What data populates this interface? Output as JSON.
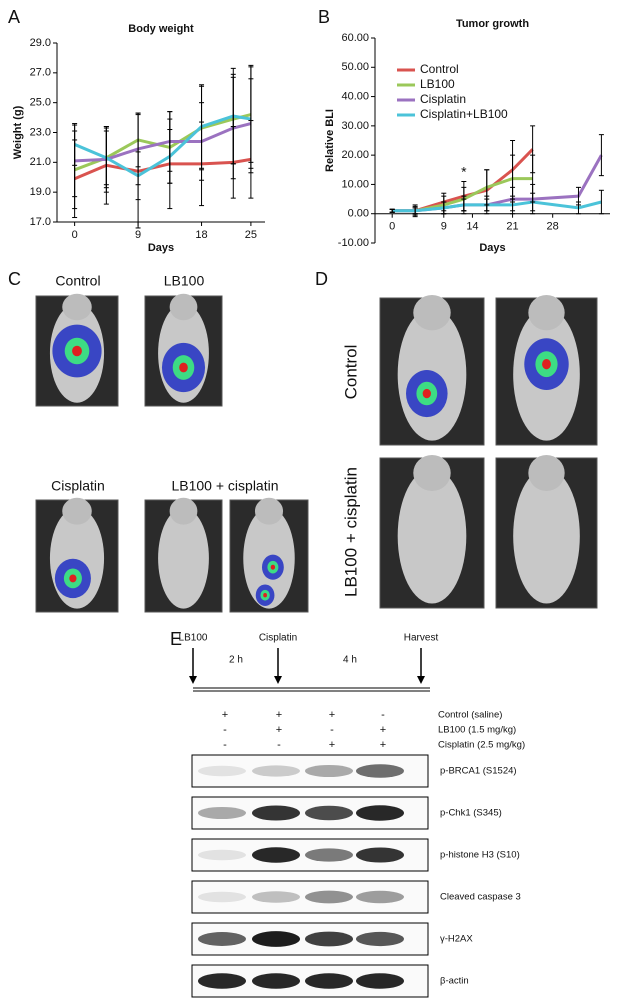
{
  "panels": {
    "a": "A",
    "b": "B",
    "c": "C",
    "d": "D",
    "e": "E"
  },
  "chart_data": [
    {
      "type": "line",
      "title": "Body weight",
      "xlabel": "Days",
      "ylabel": "Weight (g)",
      "x": [
        0,
        4.5,
        9,
        13.5,
        18,
        22.5,
        25
      ],
      "xlim": [
        -2.5,
        27
      ],
      "xticks": [
        0,
        9,
        18,
        25
      ],
      "ylim": [
        17,
        29
      ],
      "yticks": [
        {
          "value": 17,
          "label": "17.0"
        },
        {
          "value": 19,
          "label": "19.0"
        },
        {
          "value": 21,
          "label": "21.0"
        },
        {
          "value": 23,
          "label": "23.0"
        },
        {
          "value": 25,
          "label": "25.0"
        },
        {
          "value": 27,
          "label": "27.0"
        },
        {
          "value": 29,
          "label": "29.0"
        }
      ],
      "series": [
        {
          "name": "Control",
          "color": "#d9534f",
          "values": [
            19.9,
            20.8,
            20.4,
            20.9,
            20.9,
            21.0,
            21.2
          ],
          "errors": [
            2.6,
            2.6,
            3.8,
            3.0,
            2.8,
            2.4,
            2.6
          ]
        },
        {
          "name": "LB100",
          "color": "#9bc85a",
          "values": [
            20.5,
            21.3,
            22.5,
            22.0,
            23.3,
            23.9,
            24.2
          ],
          "errors": [
            2.6,
            2.0,
            1.8,
            2.4,
            2.8,
            3.0,
            3.2
          ]
        },
        {
          "name": "Cisplatin",
          "color": "#9b72c0",
          "values": [
            21.1,
            21.2,
            21.9,
            22.4,
            22.4,
            23.3,
            23.6
          ],
          "errors": [
            2.4,
            2.2,
            2.4,
            2.0,
            2.6,
            3.4,
            3.0
          ]
        },
        {
          "name": "Cisplatin+LB100",
          "color": "#4bc3d9",
          "values": [
            22.2,
            21.3,
            20.1,
            21.4,
            23.4,
            24.1,
            23.9
          ],
          "errors": [
            1.4,
            1.8,
            1.6,
            1.8,
            2.8,
            3.2,
            3.6
          ]
        }
      ]
    },
    {
      "type": "line",
      "title": "Tumor growth",
      "xlabel": "Days",
      "ylabel": "Relative BLI",
      "legend": "upper left",
      "x": [
        0,
        4,
        9,
        12.5,
        16.5,
        21,
        24.5,
        32.5,
        36.5
      ],
      "xlim": [
        -3,
        38
      ],
      "xticks": [
        0,
        9,
        14,
        21,
        28
      ],
      "ylim": [
        -10,
        60
      ],
      "yticks": [
        {
          "value": -10,
          "label": "-10.00"
        },
        {
          "value": 0,
          "label": "0.00"
        },
        {
          "value": 10,
          "label": "10.00"
        },
        {
          "value": 20,
          "label": "20.00"
        },
        {
          "value": 30,
          "label": "30.00"
        },
        {
          "value": 40,
          "label": "40.00"
        },
        {
          "value": 50,
          "label": "50.00"
        },
        {
          "value": 60,
          "label": "60.00"
        }
      ],
      "series": [
        {
          "name": "Control",
          "color": "#d9534f",
          "values": [
            1,
            1,
            4,
            6,
            8,
            15,
            22,
            null,
            null
          ],
          "errors": [
            0.5,
            2,
            3,
            5,
            7,
            10,
            8,
            null,
            null
          ]
        },
        {
          "name": "LB100",
          "color": "#9bc85a",
          "values": [
            1,
            1,
            3,
            5,
            9,
            12,
            12,
            null,
            null
          ],
          "errors": [
            0.5,
            1.5,
            3,
            4,
            6,
            8,
            8,
            null,
            null
          ]
        },
        {
          "name": "Cisplatin",
          "color": "#9b72c0",
          "values": [
            1,
            1,
            2,
            3,
            3,
            5,
            5,
            6,
            20
          ],
          "errors": [
            0.5,
            1,
            2,
            3,
            3,
            4,
            5,
            3,
            7
          ]
        },
        {
          "name": "Cisplatin+LB100",
          "color": "#4bc3d9",
          "values": [
            1,
            1,
            2,
            3,
            3,
            3,
            4,
            2,
            4
          ],
          "errors": [
            0.5,
            1,
            2,
            2,
            2,
            3,
            3,
            2,
            4
          ]
        }
      ],
      "annotations": [
        {
          "text": "*",
          "x": 12.5,
          "y": 14
        }
      ]
    }
  ],
  "c": {
    "labels": [
      "Control",
      "LB100",
      "Cisplatin",
      "LB100 + cisplatin"
    ]
  },
  "d": {
    "labels": [
      "Control",
      "LB100 + cisplatin"
    ]
  },
  "e": {
    "timeline": [
      "LB100",
      "2 h",
      "Cisplatin",
      "4 h",
      "Harvest"
    ],
    "treatments": [
      {
        "label": "Control (saline)",
        "marks": [
          "+",
          "+",
          "+",
          "-"
        ]
      },
      {
        "label": "LB100 (1.5 mg/kg)",
        "marks": [
          "-",
          "+",
          "-",
          "+"
        ]
      },
      {
        "label": "Cisplatin (2.5 mg/kg)",
        "marks": [
          "-",
          "-",
          "+",
          "+"
        ]
      }
    ],
    "blots": [
      "p-BRCA1 (S1524)",
      "p-Chk1 (S345)",
      "p-histone H3 (S10)",
      "Cleaved caspase 3",
      "γ-H2AX",
      "β-actin"
    ]
  }
}
